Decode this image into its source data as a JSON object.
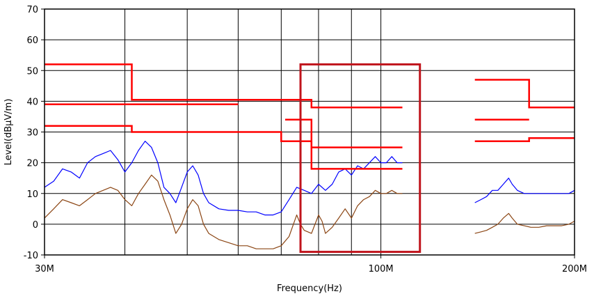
{
  "chart_data": {
    "type": "line",
    "title": "",
    "xlabel": "Frequency(Hz)",
    "ylabel": "Level(dBμV/m)",
    "xscale": "log",
    "xlim": [
      30,
      200
    ],
    "ylim": [
      -10,
      70
    ],
    "x_unit": "MHz",
    "grid": true,
    "x_tick_labels": [
      {
        "value": 30,
        "label": "30M"
      },
      {
        "value": 100,
        "label": "100M"
      },
      {
        "value": 200,
        "label": "200M"
      }
    ],
    "y_ticks": [
      -10,
      0,
      10,
      20,
      30,
      40,
      50,
      60,
      70
    ],
    "x_gridlines": [
      30,
      40,
      50,
      60,
      70,
      80,
      90,
      100,
      200
    ],
    "limit_lines": [
      {
        "points": [
          [
            30,
            52
          ],
          [
            41,
            52
          ],
          [
            41,
            40.5
          ],
          [
            78,
            40.5
          ],
          [
            78,
            38
          ],
          [
            108,
            38
          ]
        ]
      },
      {
        "points": [
          [
            30,
            39
          ],
          [
            60,
            39
          ]
        ]
      },
      {
        "points": [
          [
            30,
            32
          ],
          [
            41,
            32
          ],
          [
            41,
            30
          ],
          [
            70,
            30
          ],
          [
            70,
            27
          ],
          [
            78,
            27
          ],
          [
            78,
            25
          ],
          [
            108,
            25
          ]
        ]
      },
      {
        "points": [
          [
            71,
            34
          ],
          [
            78,
            34
          ],
          [
            78,
            18
          ],
          [
            108,
            18
          ]
        ]
      },
      {
        "points": [
          [
            140,
            47
          ],
          [
            170,
            47
          ],
          [
            170,
            38
          ],
          [
            200,
            38
          ]
        ]
      },
      {
        "points": [
          [
            140,
            34
          ],
          [
            170,
            34
          ]
        ]
      },
      {
        "points": [
          [
            140,
            27
          ],
          [
            170,
            27
          ],
          [
            170,
            28
          ],
          [
            200,
            28
          ]
        ]
      }
    ],
    "highlight_box": {
      "x": [
        75,
        115
      ],
      "y": [
        -9,
        52
      ]
    },
    "series": [
      {
        "color": "#0000ff",
        "segments": [
          [
            [
              30,
              12
            ],
            [
              31,
              14
            ],
            [
              32,
              18
            ],
            [
              33,
              17
            ],
            [
              34,
              15
            ],
            [
              35,
              20
            ],
            [
              36,
              22
            ],
            [
              37,
              23
            ],
            [
              38,
              24
            ],
            [
              39,
              21
            ],
            [
              40,
              17
            ],
            [
              41,
              20
            ],
            [
              42,
              24
            ],
            [
              43,
              27
            ],
            [
              44,
              25
            ],
            [
              45,
              20
            ],
            [
              46,
              12
            ],
            [
              47,
              10
            ],
            [
              48,
              7
            ],
            [
              49,
              12
            ],
            [
              50,
              17
            ],
            [
              51,
              19
            ],
            [
              52,
              16
            ],
            [
              53,
              10
            ],
            [
              54,
              7
            ],
            [
              56,
              5
            ],
            [
              58,
              4.5
            ],
            [
              60,
              4.5
            ],
            [
              62,
              4
            ],
            [
              64,
              4
            ],
            [
              66,
              3
            ],
            [
              68,
              3
            ],
            [
              70,
              4
            ],
            [
              72,
              8
            ],
            [
              74,
              12
            ],
            [
              76,
              11
            ],
            [
              78,
              10
            ],
            [
              80,
              13
            ],
            [
              82,
              11
            ],
            [
              84,
              13
            ],
            [
              86,
              17
            ],
            [
              88,
              18
            ],
            [
              90,
              16
            ],
            [
              92,
              19
            ],
            [
              94,
              18
            ],
            [
              96,
              20
            ],
            [
              98,
              22
            ],
            [
              100,
              20
            ],
            [
              102,
              20
            ],
            [
              104,
              22
            ],
            [
              106,
              20
            ],
            [
              108,
              20
            ]
          ],
          [
            [
              140,
              7
            ],
            [
              143,
              8
            ],
            [
              146,
              9
            ],
            [
              149,
              11
            ],
            [
              152,
              11
            ],
            [
              155,
              13
            ],
            [
              158,
              15
            ],
            [
              160,
              13
            ],
            [
              163,
              11
            ],
            [
              167,
              10
            ],
            [
              171,
              10
            ],
            [
              176,
              10
            ],
            [
              181,
              10
            ],
            [
              186,
              10
            ],
            [
              191,
              10
            ],
            [
              196,
              10
            ],
            [
              200,
              11
            ]
          ]
        ]
      },
      {
        "color": "#8b4513",
        "segments": [
          [
            [
              30,
              2
            ],
            [
              31,
              5
            ],
            [
              32,
              8
            ],
            [
              33,
              7
            ],
            [
              34,
              6
            ],
            [
              35,
              8
            ],
            [
              36,
              10
            ],
            [
              37,
              11
            ],
            [
              38,
              12
            ],
            [
              39,
              11
            ],
            [
              40,
              8
            ],
            [
              41,
              6
            ],
            [
              42,
              10
            ],
            [
              43,
              13
            ],
            [
              44,
              16
            ],
            [
              45,
              14
            ],
            [
              46,
              8
            ],
            [
              47,
              3
            ],
            [
              48,
              -3
            ],
            [
              49,
              0
            ],
            [
              50,
              5
            ],
            [
              51,
              8
            ],
            [
              52,
              6
            ],
            [
              53,
              0
            ],
            [
              54,
              -3
            ],
            [
              56,
              -5
            ],
            [
              58,
              -6
            ],
            [
              60,
              -7
            ],
            [
              62,
              -7
            ],
            [
              64,
              -8
            ],
            [
              66,
              -8
            ],
            [
              68,
              -8
            ],
            [
              70,
              -7
            ],
            [
              72,
              -4
            ],
            [
              74,
              3
            ],
            [
              75,
              0
            ],
            [
              76,
              -2
            ],
            [
              78,
              -3
            ],
            [
              80,
              3
            ],
            [
              81,
              1
            ],
            [
              82,
              -3
            ],
            [
              84,
              -1
            ],
            [
              86,
              2
            ],
            [
              88,
              5
            ],
            [
              90,
              2
            ],
            [
              92,
              6
            ],
            [
              94,
              8
            ],
            [
              96,
              9
            ],
            [
              98,
              11
            ],
            [
              100,
              10
            ],
            [
              102,
              10
            ],
            [
              104,
              11
            ],
            [
              106,
              10
            ],
            [
              108,
              10
            ]
          ],
          [
            [
              140,
              -3
            ],
            [
              143,
              -2.5
            ],
            [
              146,
              -2
            ],
            [
              149,
              -1
            ],
            [
              152,
              0
            ],
            [
              155,
              2
            ],
            [
              158,
              3.5
            ],
            [
              160,
              2
            ],
            [
              163,
              0
            ],
            [
              167,
              -0.5
            ],
            [
              171,
              -1
            ],
            [
              176,
              -1
            ],
            [
              181,
              -0.5
            ],
            [
              186,
              -0.5
            ],
            [
              191,
              -0.5
            ],
            [
              196,
              0
            ],
            [
              200,
              1
            ]
          ]
        ]
      }
    ]
  }
}
